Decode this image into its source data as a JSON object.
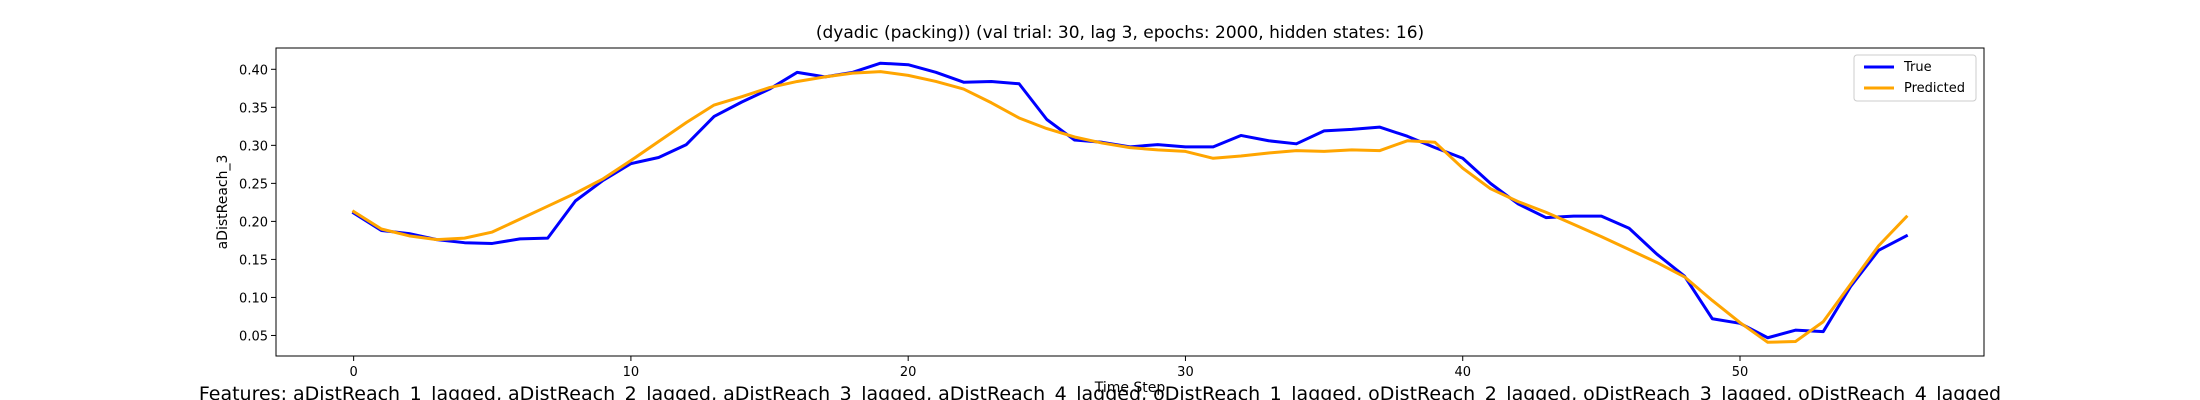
{
  "chart_data": {
    "type": "line",
    "title": "(dyadic (packing)) (val trial: 30, lag 3, epochs: 2000, hidden states: 16)",
    "xlabel": "Time Step",
    "ylabel": "aDistReach_3",
    "xlim": [
      -2.8,
      58.8
    ],
    "ylim": [
      0.023,
      0.428
    ],
    "xticks": [
      0,
      10,
      20,
      30,
      40,
      50
    ],
    "yticks": [
      0.05,
      0.1,
      0.15,
      0.2,
      0.25,
      0.3,
      0.35,
      0.4
    ],
    "ytick_labels": [
      "0.05",
      "0.10",
      "0.15",
      "0.20",
      "0.25",
      "0.30",
      "0.35",
      "0.40"
    ],
    "grid": false,
    "legend_position": "top-right",
    "x": [
      0,
      1,
      2,
      3,
      4,
      5,
      6,
      7,
      8,
      9,
      10,
      11,
      12,
      13,
      14,
      15,
      16,
      17,
      18,
      19,
      20,
      21,
      22,
      23,
      24,
      25,
      26,
      27,
      28,
      29,
      30,
      31,
      32,
      33,
      34,
      35,
      36,
      37,
      38,
      39,
      40,
      41,
      42,
      43,
      44,
      45,
      46,
      47,
      48,
      49,
      50,
      51,
      52,
      53,
      54,
      55,
      56
    ],
    "series": [
      {
        "name": "True",
        "color": "#0000ff",
        "values": [
          0.211,
          0.188,
          0.184,
          0.176,
          0.172,
          0.171,
          0.177,
          0.178,
          0.227,
          0.254,
          0.276,
          0.284,
          0.301,
          0.338,
          0.357,
          0.374,
          0.396,
          0.39,
          0.396,
          0.408,
          0.406,
          0.396,
          0.383,
          0.384,
          0.381,
          0.334,
          0.307,
          0.304,
          0.298,
          0.301,
          0.298,
          0.298,
          0.313,
          0.306,
          0.302,
          0.319,
          0.321,
          0.324,
          0.312,
          0.297,
          0.283,
          0.25,
          0.223,
          0.205,
          0.207,
          0.207,
          0.191,
          0.157,
          0.128,
          0.072,
          0.066,
          0.047,
          0.057,
          0.055,
          0.115,
          0.162,
          0.181
        ]
      },
      {
        "name": "Predicted",
        "color": "#ffa500",
        "values": [
          0.213,
          0.19,
          0.181,
          0.176,
          0.178,
          0.186,
          0.203,
          0.22,
          0.237,
          0.256,
          0.28,
          0.305,
          0.33,
          0.353,
          0.364,
          0.376,
          0.384,
          0.39,
          0.395,
          0.397,
          0.392,
          0.384,
          0.374,
          0.356,
          0.336,
          0.322,
          0.311,
          0.303,
          0.297,
          0.294,
          0.292,
          0.283,
          0.286,
          0.29,
          0.293,
          0.292,
          0.294,
          0.293,
          0.306,
          0.304,
          0.27,
          0.243,
          0.226,
          0.212,
          0.196,
          0.18,
          0.163,
          0.146,
          0.127,
          0.096,
          0.067,
          0.041,
          0.042,
          0.068,
          0.118,
          0.168,
          0.206
        ]
      }
    ]
  },
  "footer": {
    "features_text": "Features: aDistReach_1_lagged, aDistReach_2_lagged, aDistReach_3_lagged, aDistReach_4_lagged, oDistReach_1_lagged, oDistReach_2_lagged, oDistReach_3_lagged, oDistReach_4_lagged"
  }
}
